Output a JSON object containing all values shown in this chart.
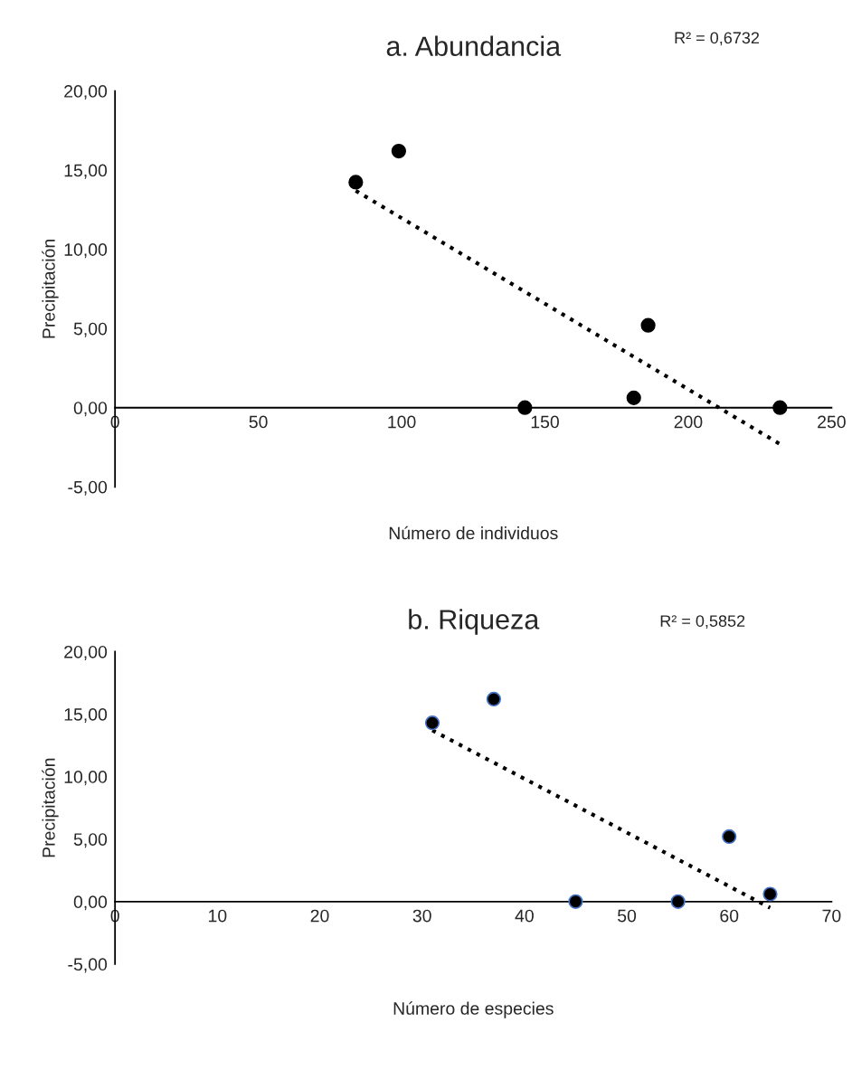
{
  "chart_data": [
    {
      "type": "scatter",
      "title": "a. Abundancia",
      "xlabel": "Número de individuos",
      "ylabel": "Precipitación",
      "annotations": [
        "R² = 0,6732"
      ],
      "series": [
        {
          "color": "#000000",
          "marker": "circle",
          "x": [
            84,
            99,
            143,
            181,
            186,
            232
          ],
          "values": [
            14.24,
            16.2,
            0,
            0.62,
            5.2,
            0
          ]
        },
        {
          "type": "line",
          "color": "#000000",
          "line_style": "dotted",
          "marker": "none",
          "x": [
            84,
            232
          ],
          "values": [
            13.7,
            -2.3
          ]
        }
      ],
      "xlim": [
        0,
        250
      ],
      "xticks": [
        0,
        50,
        100,
        150,
        200,
        250
      ],
      "ylim": [
        -5,
        20
      ],
      "yticks": [
        {
          "value": -5,
          "label": "-5,00"
        },
        {
          "value": 0,
          "label": "0,00"
        },
        {
          "value": 5,
          "label": "5,00"
        },
        {
          "value": 10,
          "label": "10,00"
        },
        {
          "value": 15,
          "label": "15,00"
        },
        {
          "value": 20,
          "label": "20,00"
        }
      ],
      "grid": false,
      "legend": false
    },
    {
      "type": "scatter",
      "title": "b. Riqueza",
      "xlabel": "Número de especies",
      "ylabel": "Precipitación",
      "annotations": [
        "R² = 0,5852"
      ],
      "series": [
        {
          "color": "#000000",
          "marker": "circle",
          "x": [
            31,
            37,
            45,
            55,
            60,
            64
          ],
          "values": [
            14.3,
            16.2,
            0,
            0,
            5.2,
            0.6
          ]
        },
        {
          "type": "line",
          "color": "#000000",
          "line_style": "dotted",
          "marker": "none",
          "x": [
            31,
            64
          ],
          "values": [
            13.7,
            -0.5
          ]
        }
      ],
      "xlim": [
        0,
        70
      ],
      "xticks": [
        0,
        10,
        20,
        30,
        40,
        50,
        60,
        70
      ],
      "ylim": [
        -5,
        20
      ],
      "yticks": [
        {
          "value": -5,
          "label": "-5,00"
        },
        {
          "value": 0,
          "label": "0,00"
        },
        {
          "value": 5,
          "label": "5,00"
        },
        {
          "value": 10,
          "label": "10,00"
        },
        {
          "value": 15,
          "label": "15,00"
        },
        {
          "value": 20,
          "label": "20,00"
        }
      ],
      "grid": false,
      "legend": false
    }
  ]
}
